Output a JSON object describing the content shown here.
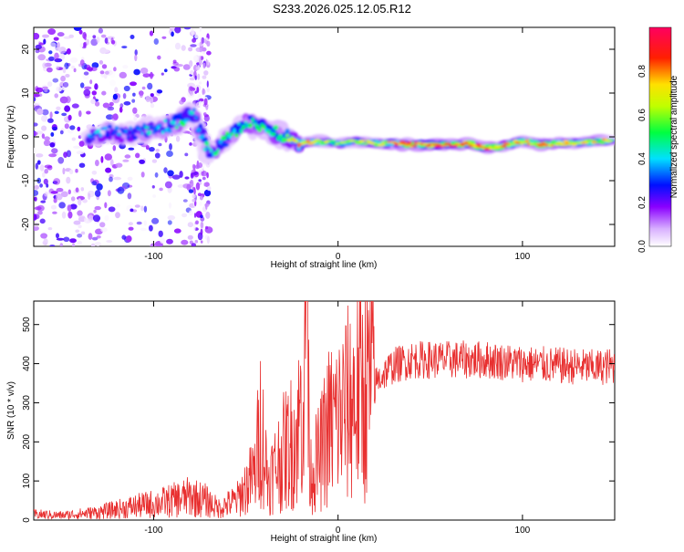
{
  "title": "S233.2026.025.12.05.R12",
  "colors": {
    "snr_line": "#e83030",
    "background": "#ffffff",
    "axis": "#000000"
  },
  "chart_data": [
    {
      "type": "heatmap",
      "xlabel": "Height of straight line (km)",
      "ylabel": "Frequency (Hz)",
      "xlim": [
        -165,
        150
      ],
      "ylim": [
        -25,
        25
      ],
      "xticks": [
        -100,
        0,
        100
      ],
      "yticks": [
        -20,
        -10,
        0,
        10,
        20
      ],
      "colorbar": {
        "label": "Normalized spectral amplitude",
        "range": [
          0,
          1
        ],
        "ticks": [
          0.0,
          0.2,
          0.4,
          0.6,
          0.8
        ],
        "tick_labels": [
          "0.0",
          "0.2",
          "0.4",
          "0.6",
          "0.8"
        ],
        "colormap": "rainbow"
      },
      "ridge": [
        {
          "x": -135,
          "freq": -0.5,
          "amp": 0.4
        },
        {
          "x": -125,
          "freq": 1.0,
          "amp": 0.35
        },
        {
          "x": -115,
          "freq": 0.5,
          "amp": 0.35
        },
        {
          "x": -105,
          "freq": 1.5,
          "amp": 0.4
        },
        {
          "x": -95,
          "freq": 2.0,
          "amp": 0.45
        },
        {
          "x": -85,
          "freq": 4.0,
          "amp": 0.5
        },
        {
          "x": -78,
          "freq": 5.0,
          "amp": 0.45
        },
        {
          "x": -70,
          "freq": -4.0,
          "amp": 0.45
        },
        {
          "x": -60,
          "freq": 0.0,
          "amp": 0.5
        },
        {
          "x": -50,
          "freq": 3.5,
          "amp": 0.5
        },
        {
          "x": -40,
          "freq": 1.5,
          "amp": 0.5
        },
        {
          "x": -30,
          "freq": 0.5,
          "amp": 0.55
        },
        {
          "x": -20,
          "freq": -1.5,
          "amp": 0.8
        },
        {
          "x": -10,
          "freq": -1.0,
          "amp": 0.7
        },
        {
          "x": 0,
          "freq": -1.5,
          "amp": 0.6
        },
        {
          "x": 10,
          "freq": -1.0,
          "amp": 0.65
        },
        {
          "x": 20,
          "freq": -1.5,
          "amp": 0.7
        },
        {
          "x": 30,
          "freq": -1.5,
          "amp": 0.75
        },
        {
          "x": 40,
          "freq": -1.8,
          "amp": 0.9
        },
        {
          "x": 50,
          "freq": -1.8,
          "amp": 0.95
        },
        {
          "x": 60,
          "freq": -1.8,
          "amp": 0.95
        },
        {
          "x": 70,
          "freq": -1.5,
          "amp": 0.8
        },
        {
          "x": 80,
          "freq": -2.5,
          "amp": 0.85
        },
        {
          "x": 90,
          "freq": -2.0,
          "amp": 0.8
        },
        {
          "x": 100,
          "freq": -1.0,
          "amp": 0.75
        },
        {
          "x": 110,
          "freq": -1.8,
          "amp": 0.8
        },
        {
          "x": 120,
          "freq": -1.5,
          "amp": 0.75
        },
        {
          "x": 135,
          "freq": -1.2,
          "amp": 0.7
        },
        {
          "x": 148,
          "freq": -0.8,
          "amp": 0.75
        }
      ]
    },
    {
      "type": "line",
      "xlabel": "Height of straight line (km)",
      "ylabel": "SNR (10 * v/v)",
      "xlim": [
        -165,
        150
      ],
      "ylim": [
        0,
        560
      ],
      "xticks": [
        -100,
        0,
        100
      ],
      "yticks": [
        0,
        100,
        200,
        300,
        400,
        500
      ],
      "series": [
        {
          "name": "SNR",
          "x": [
            -165,
            -150,
            -130,
            -110,
            -95,
            -80,
            -72,
            -65,
            -55,
            -45,
            -42,
            -38,
            -30,
            -22,
            -17,
            -15,
            -10,
            -5,
            0,
            5,
            10,
            15,
            20,
            25,
            30,
            40,
            60,
            80,
            100,
            120,
            140,
            150
          ],
          "values": [
            15,
            12,
            20,
            35,
            45,
            60,
            50,
            30,
            50,
            120,
            250,
            100,
            170,
            220,
            400,
            120,
            160,
            240,
            260,
            290,
            320,
            340,
            350,
            375,
            395,
            410,
            410,
            410,
            400,
            395,
            390,
            395
          ]
        }
      ]
    }
  ]
}
